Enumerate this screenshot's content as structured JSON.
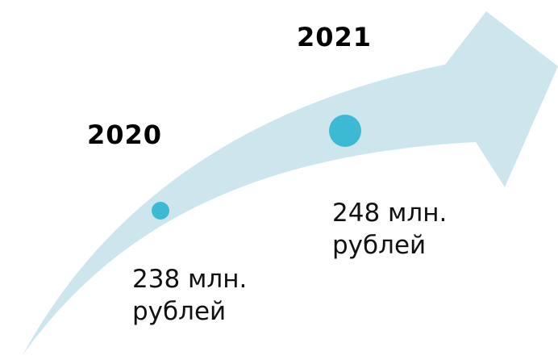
{
  "colors": {
    "arrow": "#cde6ee",
    "dot": "#3cbad3",
    "text": "#000000"
  },
  "milestones": [
    {
      "year": "2020",
      "value_line1": "238 млн.",
      "value_line2": "рублей"
    },
    {
      "year": "2021",
      "value_line1": "248 млн.",
      "value_line2": "рублей"
    }
  ]
}
